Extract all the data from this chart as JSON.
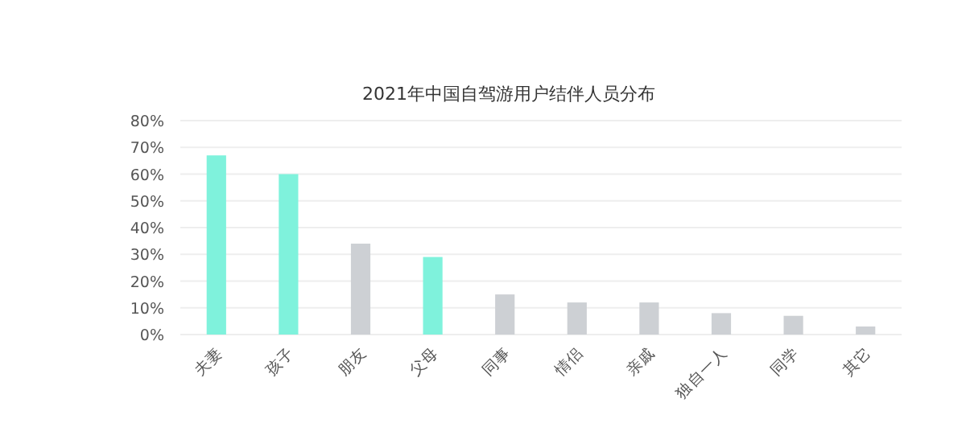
{
  "chart_data": {
    "type": "bar",
    "title": "2021年中国自驾游用户结伴人员分布",
    "categories": [
      "夫妻",
      "孩子",
      "朋友",
      "父母",
      "同事",
      "情侣",
      "亲戚",
      "独自一人",
      "同学",
      "其它"
    ],
    "values": [
      67,
      60,
      34,
      29,
      15,
      12,
      12,
      8,
      7,
      3
    ],
    "colors": [
      "#7ff2dc",
      "#7ff2dc",
      "#cdd0d4",
      "#7ff2dc",
      "#cdd0d4",
      "#cdd0d4",
      "#cdd0d4",
      "#cdd0d4",
      "#cdd0d4",
      "#cdd0d4"
    ],
    "ylim": [
      0,
      80
    ],
    "yticks": [
      {
        "value": 0,
        "label": "0%"
      },
      {
        "value": 10,
        "label": "10%"
      },
      {
        "value": 20,
        "label": "20%"
      },
      {
        "value": 30,
        "label": "30%"
      },
      {
        "value": 40,
        "label": "40%"
      },
      {
        "value": 50,
        "label": "50%"
      },
      {
        "value": 60,
        "label": "60%"
      },
      {
        "value": 70,
        "label": "70%"
      },
      {
        "value": 80,
        "label": "80%"
      }
    ],
    "grid": "y"
  }
}
